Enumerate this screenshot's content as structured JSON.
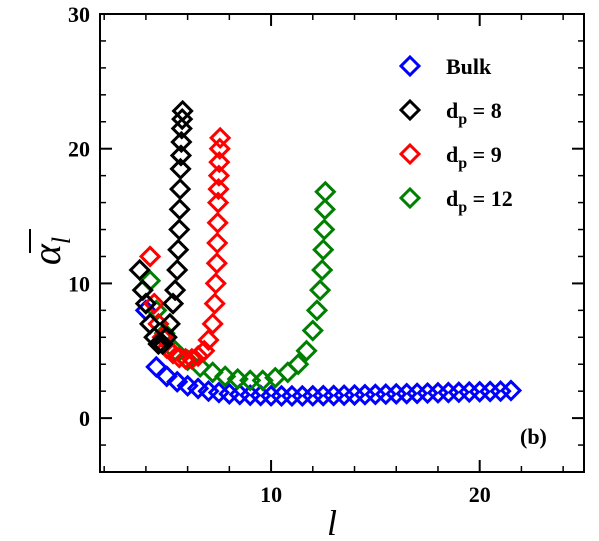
{
  "chart_data": {
    "type": "scatter",
    "xlabel": "l",
    "ylabel": "α",
    "ylabel_subscript": "l",
    "xlim": [
      1.8,
      25
    ],
    "ylim": [
      -4,
      30
    ],
    "xticks": [
      10,
      20
    ],
    "yticks": [
      0,
      10,
      20,
      30
    ],
    "grid": false,
    "legend_position": "top-right",
    "annotation": "(b)",
    "marker": "open-diamond",
    "series": [
      {
        "name": "Bulk",
        "legend_main": "Bulk",
        "legend_sub": "",
        "legend_tail": "",
        "color": "#0000ff",
        "x": [
          4,
          4.5,
          5,
          5.5,
          6,
          6.5,
          7,
          7.5,
          8,
          8.5,
          9,
          9.5,
          10,
          10.5,
          11,
          11.5,
          12,
          12.5,
          13,
          13.5,
          14,
          14.5,
          15,
          15.5,
          16,
          16.5,
          17,
          17.5,
          18,
          18.5,
          19,
          19.5,
          20,
          20.5,
          21,
          21.5
        ],
        "y": [
          8,
          3.8,
          3.1,
          2.7,
          2.4,
          2.2,
          2.0,
          1.9,
          1.8,
          1.75,
          1.7,
          1.68,
          1.66,
          1.65,
          1.65,
          1.65,
          1.66,
          1.67,
          1.68,
          1.7,
          1.72,
          1.74,
          1.76,
          1.78,
          1.8,
          1.82,
          1.84,
          1.86,
          1.88,
          1.9,
          1.92,
          1.94,
          1.96,
          1.98,
          2.0,
          2.05
        ]
      },
      {
        "name": "dp = 8",
        "legend_main": "d",
        "legend_sub": "p",
        "legend_tail": " = 8",
        "color": "#000000",
        "x": [
          3.7,
          3.85,
          4.0,
          4.2,
          4.4,
          4.6,
          4.8,
          5.0,
          5.15,
          5.3,
          5.4,
          5.5,
          5.55,
          5.6,
          5.62,
          5.64,
          5.66,
          5.68,
          5.7,
          5.72,
          5.74,
          5.76
        ],
        "y": [
          11.0,
          9.5,
          8.5,
          7.0,
          6.0,
          5.5,
          5.5,
          6.0,
          7.0,
          8.5,
          9.5,
          11.0,
          12.5,
          14.0,
          15.5,
          17.0,
          18.5,
          19.5,
          20.5,
          21.5,
          22.2,
          22.8
        ]
      },
      {
        "name": "dp = 9",
        "legend_main": "d",
        "legend_sub": "p",
        "legend_tail": " = 9",
        "color": "#ff0000",
        "x": [
          4.2,
          4.4,
          4.6,
          4.8,
          5.0,
          5.3,
          5.6,
          5.9,
          6.2,
          6.5,
          6.8,
          7.0,
          7.2,
          7.3,
          7.35,
          7.4,
          7.42,
          7.44,
          7.46,
          7.48,
          7.5,
          7.52,
          7.54,
          7.56
        ],
        "y": [
          12.0,
          8.5,
          7.0,
          6.0,
          5.2,
          4.8,
          4.5,
          4.4,
          4.4,
          4.6,
          5.0,
          5.8,
          7.0,
          8.5,
          10.0,
          11.5,
          13.0,
          14.5,
          16.0,
          17.0,
          18.0,
          19.0,
          20.0,
          20.8
        ]
      },
      {
        "name": "dp = 12",
        "legend_main": "d",
        "legend_sub": "p",
        "legend_tail": " = 12",
        "color": "#008000",
        "x": [
          4.2,
          4.5,
          4.9,
          5.4,
          6.0,
          6.6,
          7.2,
          7.8,
          8.4,
          9.0,
          9.6,
          10.2,
          10.8,
          11.3,
          11.7,
          12.0,
          12.2,
          12.35,
          12.45,
          12.5,
          12.55,
          12.58,
          12.6
        ],
        "y": [
          10.2,
          8.0,
          6.3,
          5.0,
          4.3,
          3.8,
          3.4,
          3.1,
          2.9,
          2.8,
          2.8,
          3.0,
          3.4,
          4.0,
          5.0,
          6.5,
          8.0,
          9.5,
          11.0,
          12.5,
          14.0,
          15.5,
          16.8
        ]
      }
    ]
  }
}
